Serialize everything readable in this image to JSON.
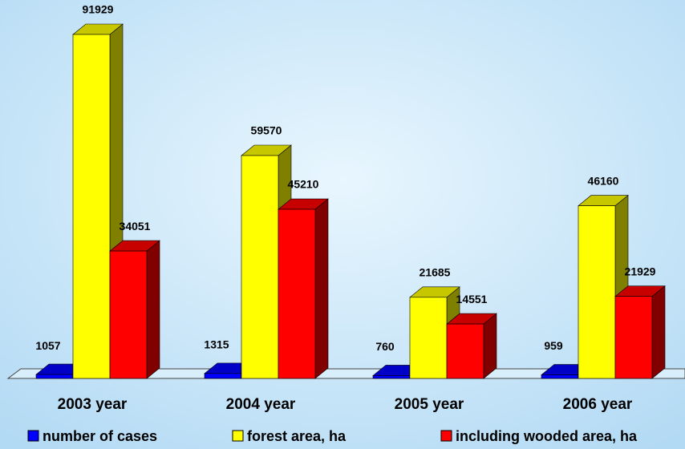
{
  "chart_data": {
    "type": "bar3d",
    "categories": [
      "2003 year",
      "2004 year",
      "2005 year",
      "2006 year"
    ],
    "series": [
      {
        "name": "number of cases",
        "color": "#0000ff",
        "values": [
          1057,
          1315,
          760,
          959
        ]
      },
      {
        "name": "forest area, ha",
        "color": "#ffff00",
        "values": [
          91929,
          59570,
          21685,
          46160
        ]
      },
      {
        "name": "including wooded area, ha",
        "color": "#ff0000",
        "values": [
          34051,
          45210,
          14551,
          21929
        ]
      }
    ]
  }
}
